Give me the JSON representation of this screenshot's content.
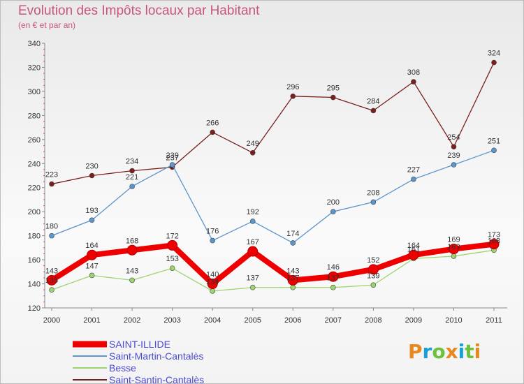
{
  "header": {
    "title": "Evolution des Impôts locaux par Habitant",
    "subtitle": "(en € et par an)"
  },
  "logo": {
    "text": "Proxiti",
    "colors": [
      "#e8891f",
      "#1aa0d8",
      "#6cc13d",
      "#e8891f",
      "#1aa0d8",
      "#6cc13d",
      "#e8891f"
    ]
  },
  "chart_data": {
    "type": "line",
    "title": "Evolution des Impôts locaux par Habitant",
    "subtitle": "(en € et par an)",
    "xlabel": "",
    "ylabel": "",
    "x": [
      "2000",
      "2001",
      "2002",
      "2003",
      "2004",
      "2005",
      "2006",
      "2007",
      "2008",
      "2009",
      "2010",
      "2011"
    ],
    "ylim": [
      120,
      340
    ],
    "yticks": [
      120,
      140,
      160,
      180,
      200,
      220,
      240,
      260,
      280,
      300,
      320,
      340
    ],
    "grid": false,
    "legend_position": "bottom-left",
    "series": [
      {
        "name": "Saint-Santin-Cantalès",
        "color": "#7a1f1f",
        "values": [
          223,
          230,
          234,
          237,
          266,
          249,
          296,
          295,
          284,
          308,
          254,
          324
        ],
        "labels": [
          "223",
          "230",
          "234",
          "237",
          "266",
          "249",
          "296",
          "295",
          "284",
          "308",
          "254",
          "324"
        ]
      },
      {
        "name": "Saint-Martin-Cantalès",
        "color": "#5b96cc",
        "values": [
          180,
          193,
          221,
          239,
          176,
          192,
          174,
          200,
          208,
          227,
          239,
          251
        ],
        "labels": [
          "180",
          "193",
          "221",
          "239",
          "176",
          "192",
          "174",
          "200",
          "208",
          "227",
          "239",
          "251"
        ]
      },
      {
        "name": "Besse",
        "color": "#9ed470",
        "values": [
          135,
          147,
          143,
          153,
          134,
          137,
          137,
          137,
          139,
          161,
          163,
          168
        ],
        "labels": [
          "135",
          "147",
          "143",
          "153",
          "134",
          "137",
          "137",
          "137",
          "139",
          "161",
          "163",
          "168"
        ]
      },
      {
        "name": "SAINT-ILLIDE",
        "color": "#ee0000",
        "values": [
          143,
          164,
          168,
          172,
          140,
          167,
          143,
          146,
          152,
          164,
          169,
          173
        ],
        "labels": [
          "143",
          "164",
          "168",
          "172",
          "140",
          "167",
          "143",
          "146",
          "152",
          "164",
          "169",
          "173"
        ]
      }
    ],
    "legend": [
      {
        "name": "SAINT-ILLIDE",
        "color": "#ee0000"
      },
      {
        "name": "Saint-Martin-Cantalès",
        "color": "#5b96cc"
      },
      {
        "name": "Besse",
        "color": "#9ed470"
      },
      {
        "name": "Saint-Santin-Cantalès",
        "color": "#7a1f1f"
      }
    ]
  }
}
